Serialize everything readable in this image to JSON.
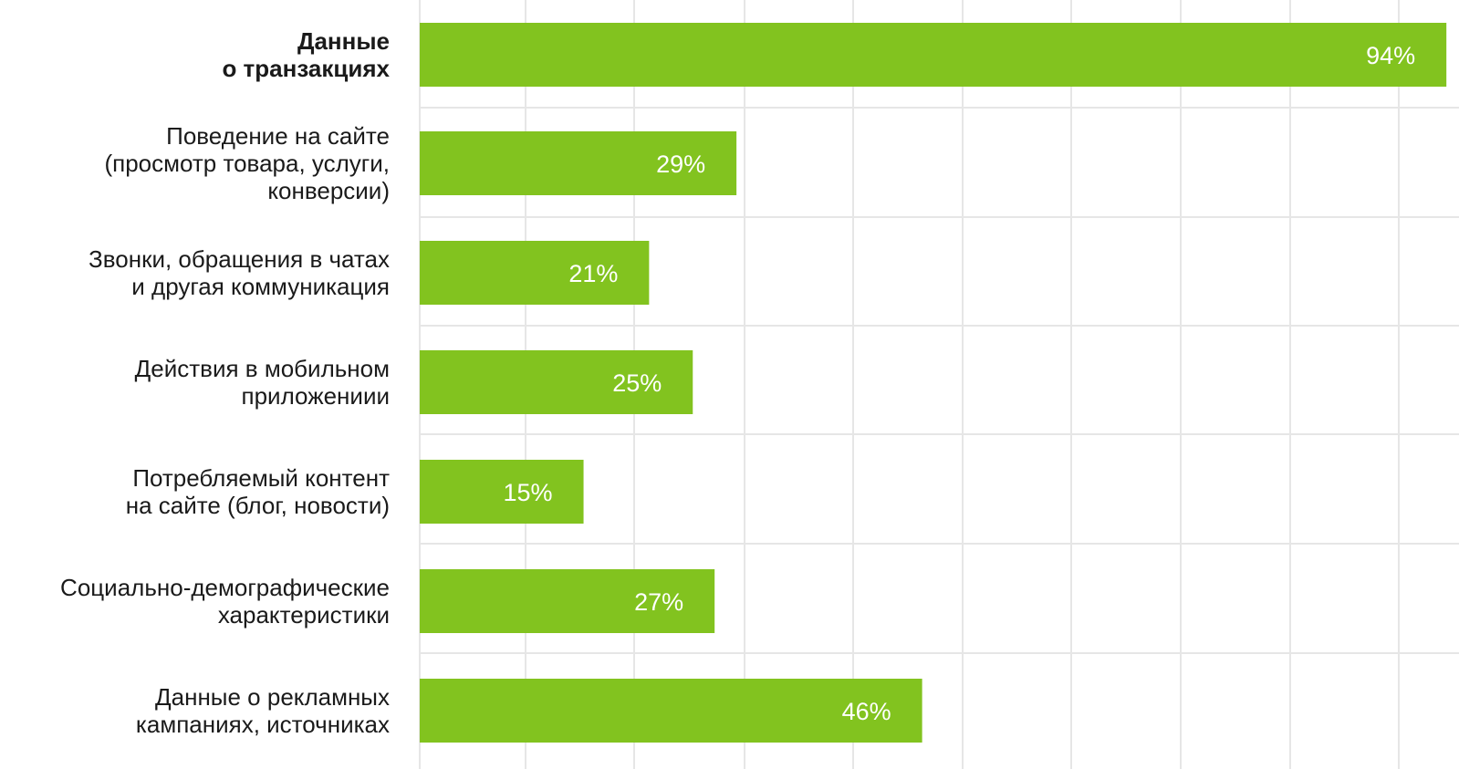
{
  "chart_data": {
    "type": "bar",
    "orientation": "horizontal",
    "categories": [
      [
        "Данные",
        "о транзакциях"
      ],
      [
        "Поведение на сайте",
        "(просмотр товара, услуги,",
        "конверсии)"
      ],
      [
        "Звонки, обращения в чатах",
        "и другая коммуникация"
      ],
      [
        "Действия в мобильном",
        "приложениии"
      ],
      [
        "Потребляемый контент",
        "на сайте (блог, новости)"
      ],
      [
        "Социально-демографические",
        "характеристики"
      ],
      [
        "Данные о рекламных",
        "кампаниях, источниках"
      ]
    ],
    "values": [
      94,
      29,
      21,
      25,
      15,
      27,
      46
    ],
    "value_labels": [
      "94%",
      "29%",
      "21%",
      "25%",
      "15%",
      "27%",
      "46%"
    ],
    "highlighted_category_index": 0,
    "xlim": [
      0,
      100
    ],
    "grid": true,
    "colors": {
      "bar": "#82c31f",
      "grid": "#e6e6e6",
      "label": "#1a1a1a",
      "value_label": "#ffffff"
    }
  }
}
